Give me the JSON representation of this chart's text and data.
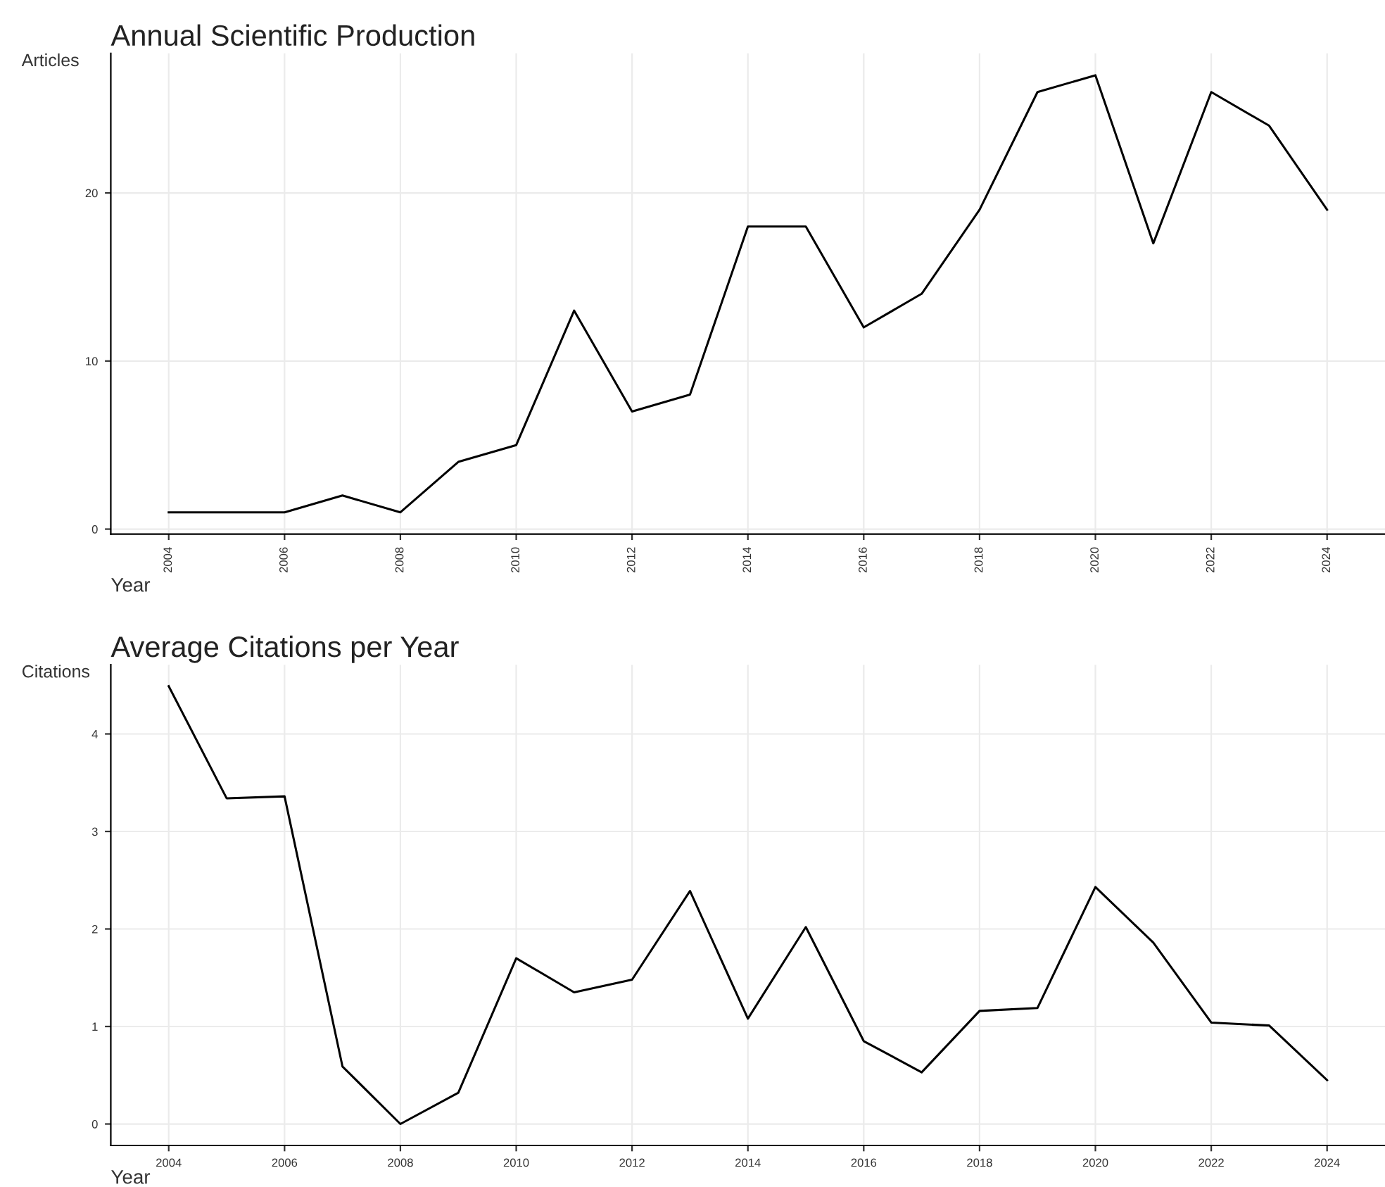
{
  "chart_data": [
    {
      "type": "line",
      "title": "Annual Scientific Production",
      "xlabel": "Year",
      "ylabel": "Articles",
      "x": [
        2004,
        2005,
        2006,
        2007,
        2008,
        2009,
        2010,
        2011,
        2012,
        2013,
        2014,
        2015,
        2016,
        2017,
        2018,
        2019,
        2020,
        2021,
        2022,
        2023,
        2024
      ],
      "series": [
        {
          "color": "#000000",
          "values": [
            1,
            1,
            1,
            2,
            1,
            4,
            5,
            13,
            7,
            8,
            18,
            18,
            12,
            14,
            19,
            26,
            27,
            17,
            26,
            24,
            19
          ]
        }
      ],
      "xlim": [
        2003,
        2025
      ],
      "xticks": [
        2004,
        2006,
        2008,
        2010,
        2012,
        2014,
        2016,
        2018,
        2020,
        2022,
        2024
      ],
      "ylim": [
        -0.3,
        28.3
      ],
      "yticks": [
        0,
        10,
        20
      ],
      "grid": true
    },
    {
      "type": "line",
      "title": "Average Citations per Year",
      "xlabel": "Year",
      "ylabel": "Citations",
      "x": [
        2004,
        2005,
        2006,
        2007,
        2008,
        2009,
        2010,
        2011,
        2012,
        2013,
        2014,
        2015,
        2016,
        2017,
        2018,
        2019,
        2020,
        2021,
        2022,
        2023,
        2024
      ],
      "series": [
        {
          "color": "#000000",
          "values": [
            4.49,
            3.34,
            3.36,
            0.59,
            0,
            0.32,
            1.7,
            1.35,
            1.48,
            2.39,
            1.08,
            2.02,
            0.85,
            0.53,
            1.16,
            1.19,
            2.43,
            1.86,
            1.04,
            1.01,
            0.45
          ]
        }
      ],
      "xlim": [
        2003,
        2025
      ],
      "xticks": [
        2004,
        2006,
        2008,
        2010,
        2012,
        2014,
        2016,
        2018,
        2020,
        2022,
        2024
      ],
      "ylim": [
        -0.22,
        4.71
      ],
      "yticks": [
        0,
        1,
        2,
        3,
        4
      ],
      "grid": true
    }
  ]
}
